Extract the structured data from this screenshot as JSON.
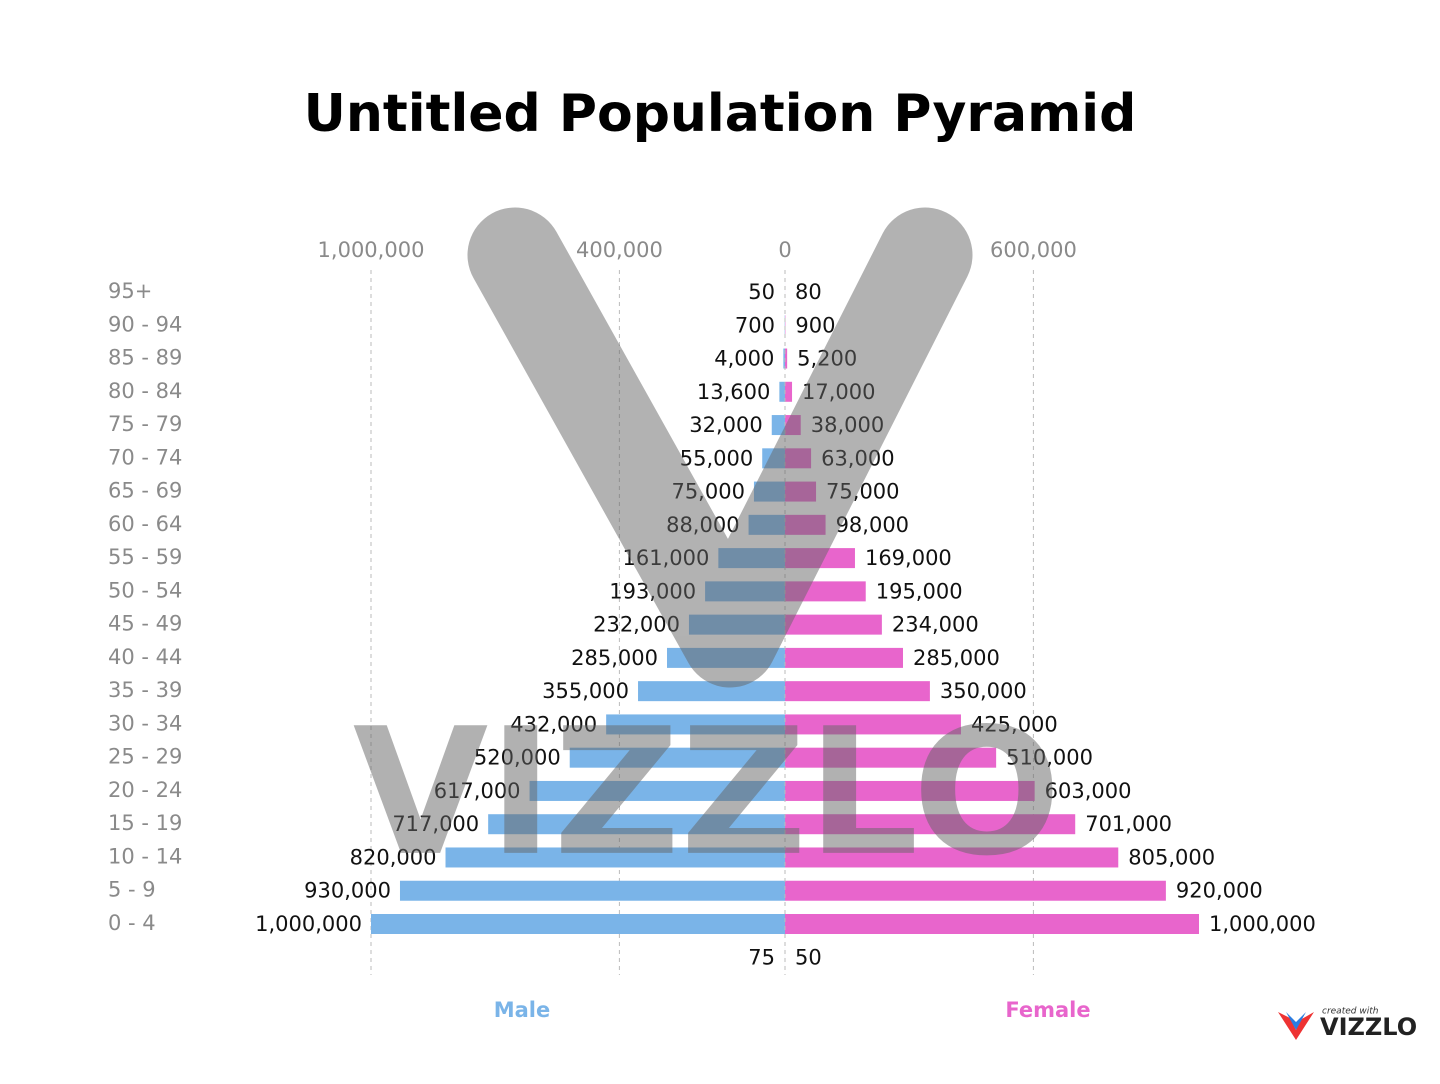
{
  "chart_data": {
    "type": "population-pyramid",
    "title": "Untitled Population Pyramid",
    "categories": [
      "95+",
      "90 - 94",
      "85 - 89",
      "80 - 84",
      "75 - 79",
      "70 - 74",
      "65 - 69",
      "60 - 64",
      "55 - 59",
      "50 - 54",
      "45 - 49",
      "40 - 44",
      "35 - 39",
      "30 - 34",
      "25 - 29",
      "20 - 24",
      "15 - 19",
      "10 - 14",
      "5 - 9",
      "0 - 4",
      null
    ],
    "series": [
      {
        "name": "Male",
        "color": "#7ab4e8",
        "side": "left",
        "values": [
          50,
          700,
          4000,
          13600,
          32000,
          55000,
          75000,
          88000,
          161000,
          193000,
          232000,
          285000,
          355000,
          432000,
          520000,
          617000,
          717000,
          820000,
          930000,
          1000000,
          75
        ],
        "value_labels": [
          "50",
          "700",
          "4,000",
          "13,600",
          "32,000",
          "55,000",
          "75,000",
          "88,000",
          "161,000",
          "193,000",
          "232,000",
          "285,000",
          "355,000",
          "432,000",
          "520,000",
          "617,000",
          "717,000",
          "820,000",
          "930,000",
          "1,000,000",
          "75"
        ],
        "xlim": [
          0,
          1000000
        ],
        "xticks": [
          {
            "value": 1000000,
            "label": "1,000,000"
          },
          {
            "value": 400000,
            "label": "400,000"
          },
          0
        ]
      },
      {
        "name": "Female",
        "color": "#e865cc",
        "side": "right",
        "values": [
          80,
          900,
          5200,
          17000,
          38000,
          63000,
          75000,
          98000,
          169000,
          195000,
          234000,
          285000,
          350000,
          425000,
          510000,
          603000,
          701000,
          805000,
          920000,
          1000000,
          50
        ],
        "value_labels": [
          "80",
          "900",
          "5,200",
          "17,000",
          "38,000",
          "63,000",
          "75,000",
          "98,000",
          "169,000",
          "195,000",
          "234,000",
          "285,000",
          "350,000",
          "425,000",
          "510,000",
          "603,000",
          "701,000",
          "805,000",
          "920,000",
          "1,000,000",
          "50"
        ],
        "xlim": [
          0,
          1000000
        ],
        "xticks": [
          {
            "value": 600000,
            "label": "600,000"
          }
        ]
      }
    ],
    "grid": true,
    "watermark": "VIZZLO",
    "branding": {
      "caption": "created with",
      "name": "VIZZLO"
    }
  }
}
